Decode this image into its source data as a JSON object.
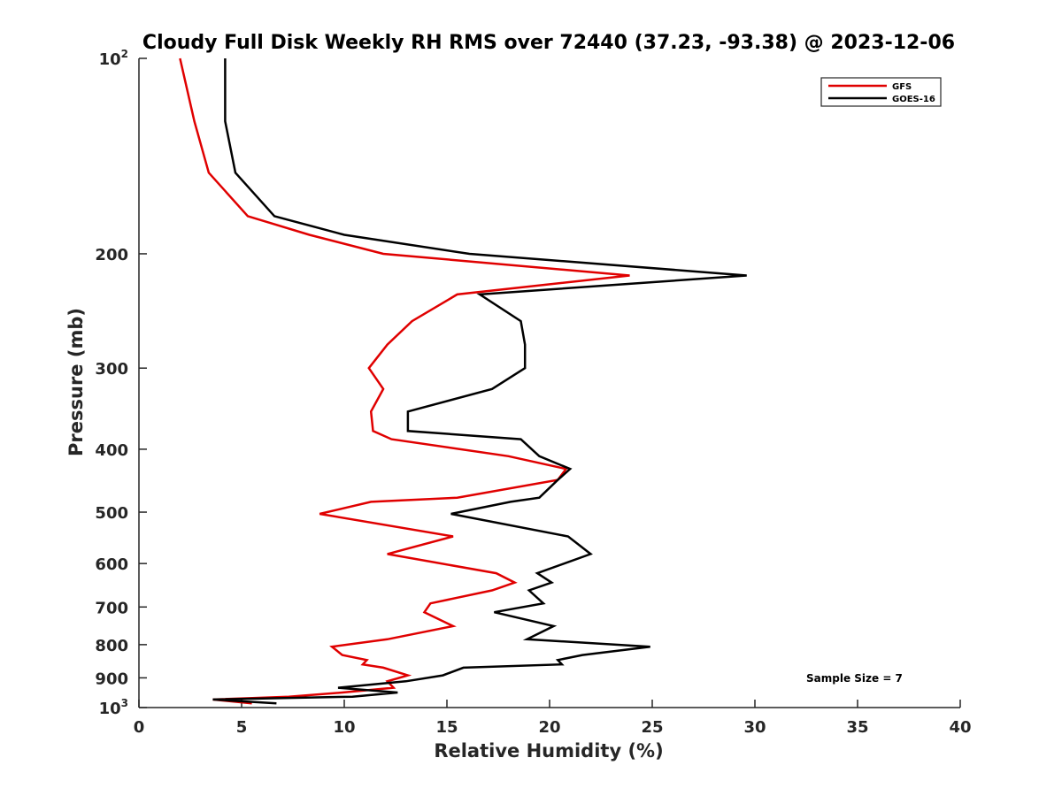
{
  "chart_data": {
    "type": "line",
    "title": "Cloudy Full Disk Weekly RH RMS over 72440 (37.23, -93.38) @ 2023-12-06",
    "xlabel": "Relative Humidity (%)",
    "ylabel": "Pressure (mb)",
    "xlim": [
      0,
      40
    ],
    "ylim": [
      100,
      1000
    ],
    "y_scale": "log",
    "y_reversed": true,
    "x_ticks": [
      "0",
      "5",
      "10",
      "15",
      "20",
      "25",
      "30",
      "35",
      "40"
    ],
    "y_ticks": [
      {
        "value": 100,
        "base": "10",
        "exp": "2"
      },
      {
        "value": 200,
        "label": "200"
      },
      {
        "value": 300,
        "label": "300"
      },
      {
        "value": 400,
        "label": "400"
      },
      {
        "value": 500,
        "label": "500"
      },
      {
        "value": 600,
        "label": "600"
      },
      {
        "value": 700,
        "label": "700"
      },
      {
        "value": 800,
        "label": "800"
      },
      {
        "value": 900,
        "label": "900"
      },
      {
        "value": 1000,
        "base": "10",
        "exp": "3"
      }
    ],
    "legend_position": "top-right",
    "annotation": "Sample Size = 7",
    "series": [
      {
        "name": "GFS",
        "color": "#e00000",
        "points": [
          [
            2.0,
            100
          ],
          [
            2.7,
            125
          ],
          [
            3.4,
            150
          ],
          [
            5.3,
            175
          ],
          [
            8.3,
            187
          ],
          [
            11.9,
            200
          ],
          [
            23.9,
            216
          ],
          [
            15.5,
            231
          ],
          [
            13.3,
            254
          ],
          [
            12.1,
            276
          ],
          [
            11.2,
            300
          ],
          [
            11.9,
            323
          ],
          [
            11.3,
            350
          ],
          [
            11.4,
            375
          ],
          [
            12.3,
            386
          ],
          [
            18.0,
            410
          ],
          [
            20.8,
            429
          ],
          [
            20.4,
            446
          ],
          [
            15.5,
            475
          ],
          [
            11.3,
            482
          ],
          [
            8.8,
            503
          ],
          [
            15.3,
            545
          ],
          [
            12.1,
            580
          ],
          [
            17.4,
            621
          ],
          [
            18.3,
            642
          ],
          [
            17.2,
            660
          ],
          [
            14.2,
            691
          ],
          [
            13.9,
            713
          ],
          [
            15.3,
            749
          ],
          [
            12.1,
            785
          ],
          [
            9.4,
            806
          ],
          [
            9.9,
            830
          ],
          [
            11.1,
            845
          ],
          [
            10.9,
            858
          ],
          [
            11.9,
            868
          ],
          [
            13.1,
            892
          ],
          [
            12.1,
            911
          ],
          [
            12.4,
            932
          ],
          [
            9.9,
            948
          ],
          [
            7.3,
            962
          ],
          [
            3.6,
            972
          ],
          [
            5.5,
            985
          ]
        ]
      },
      {
        "name": "GOES-16",
        "color": "#000000",
        "points": [
          [
            4.2,
            100
          ],
          [
            4.2,
            125
          ],
          [
            4.7,
            150
          ],
          [
            6.6,
            175
          ],
          [
            10.0,
            187
          ],
          [
            16.1,
            200
          ],
          [
            29.6,
            216
          ],
          [
            16.6,
            231
          ],
          [
            18.6,
            254
          ],
          [
            18.8,
            276
          ],
          [
            18.8,
            300
          ],
          [
            17.2,
            323
          ],
          [
            13.1,
            350
          ],
          [
            13.1,
            375
          ],
          [
            18.6,
            386
          ],
          [
            19.5,
            410
          ],
          [
            21.0,
            429
          ],
          [
            20.4,
            446
          ],
          [
            19.5,
            475
          ],
          [
            18.1,
            482
          ],
          [
            15.2,
            503
          ],
          [
            20.9,
            545
          ],
          [
            22.0,
            580
          ],
          [
            19.4,
            621
          ],
          [
            20.1,
            642
          ],
          [
            19.0,
            660
          ],
          [
            19.7,
            691
          ],
          [
            17.3,
            713
          ],
          [
            20.2,
            749
          ],
          [
            18.9,
            785
          ],
          [
            24.9,
            806
          ],
          [
            21.6,
            830
          ],
          [
            20.4,
            845
          ],
          [
            20.6,
            858
          ],
          [
            15.8,
            868
          ],
          [
            14.8,
            892
          ],
          [
            13.0,
            911
          ],
          [
            9.7,
            932
          ],
          [
            12.6,
            948
          ],
          [
            10.4,
            962
          ],
          [
            3.6,
            972
          ],
          [
            6.7,
            985
          ]
        ]
      }
    ]
  }
}
